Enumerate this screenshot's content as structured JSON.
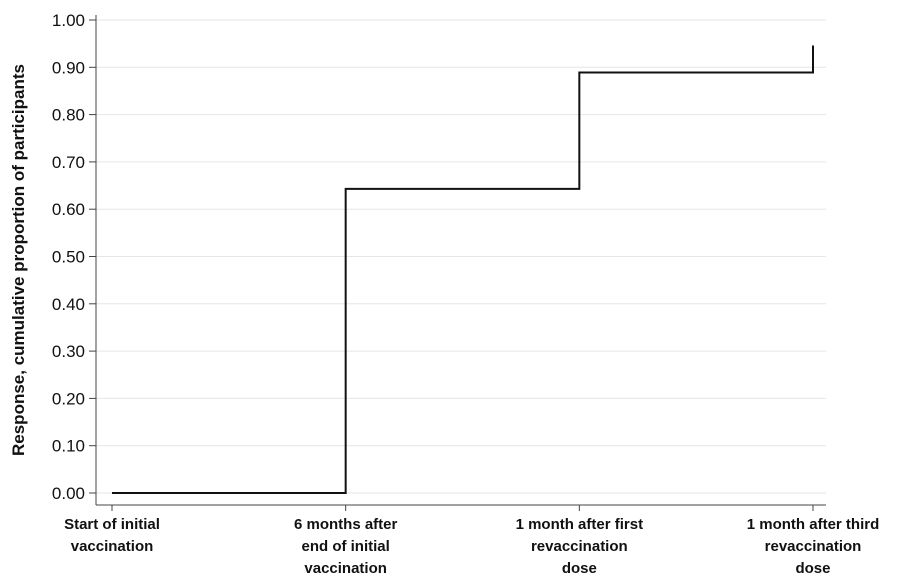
{
  "chart_data": {
    "type": "line",
    "step": true,
    "title": "",
    "xlabel": "",
    "ylabel": "Response, cumulative proportion of participants",
    "ylim": [
      0,
      1.0
    ],
    "yticks": [
      "0.00",
      "0.10",
      "0.20",
      "0.30",
      "0.40",
      "0.50",
      "0.60",
      "0.70",
      "0.80",
      "0.90",
      "1.00"
    ],
    "grid": true,
    "categories": [
      [
        "Start of initial",
        "vaccination"
      ],
      [
        "6 months after",
        "end of initial",
        "vaccination"
      ],
      [
        "1 month after first",
        "revaccination",
        "dose"
      ],
      [
        "1 month after third",
        "revaccination",
        "dose"
      ]
    ],
    "points": [
      {
        "x": 0,
        "y": 0.0
      },
      {
        "x": 1,
        "y": 0.0
      },
      {
        "x": 1,
        "y": 0.643
      },
      {
        "x": 2,
        "y": 0.643
      },
      {
        "x": 2,
        "y": 0.889
      },
      {
        "x": 3,
        "y": 0.889
      },
      {
        "x": 3,
        "y": 0.946
      }
    ],
    "colors": {
      "line": "#111111",
      "grid": "#e6e6e6",
      "axis": "#444444"
    }
  }
}
